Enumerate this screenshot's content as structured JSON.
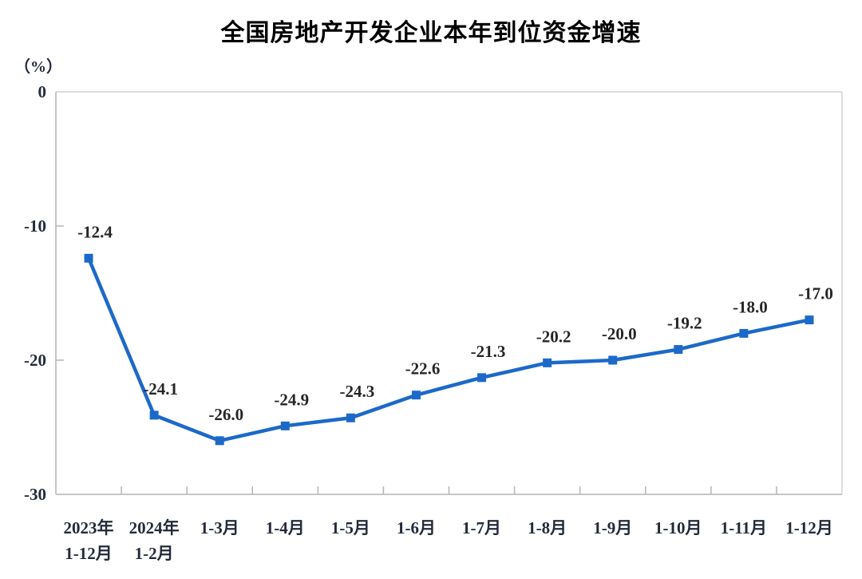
{
  "page": {
    "background": "#ffffff"
  },
  "chart_data": {
    "type": "line",
    "title": "全国房地产开发企业本年到位资金增速",
    "unit_label": "（%）",
    "categories": [
      [
        "2023年",
        "1-12月"
      ],
      [
        "2024年",
        "1-2月"
      ],
      [
        "1-3月"
      ],
      [
        "1-4月"
      ],
      [
        "1-5月"
      ],
      [
        "1-6月"
      ],
      [
        "1-7月"
      ],
      [
        "1-8月"
      ],
      [
        "1-9月"
      ],
      [
        "1-10月"
      ],
      [
        "1-11月"
      ],
      [
        "1-12月"
      ]
    ],
    "values": [
      -12.4,
      -24.1,
      -26.0,
      -24.9,
      -24.3,
      -22.6,
      -21.3,
      -20.2,
      -20.0,
      -19.2,
      -18.0,
      -17.0
    ],
    "value_labels": [
      "-12.4",
      "-24.1",
      "-26.0",
      "-24.9",
      "-24.3",
      "-22.6",
      "-21.3",
      "-20.2",
      "-20.0",
      "-19.2",
      "-18.0",
      "-17.0"
    ],
    "y_ticks": [
      0,
      -10,
      -20,
      -30
    ],
    "y_tick_labels": [
      "0",
      "-10",
      "-20",
      "-30"
    ],
    "ylim": [
      -30,
      0
    ],
    "grid": false,
    "legend": "none",
    "colors": {
      "line": "#1c69c9",
      "marker": "#1c69c9",
      "axis_left_bottom": "#c6c6c6",
      "axis_top_right": "#dedede",
      "tick": "#b5b5b5",
      "data_label_text": "#262626",
      "axis_text": "#232b3a",
      "title_text": "#000000"
    }
  }
}
